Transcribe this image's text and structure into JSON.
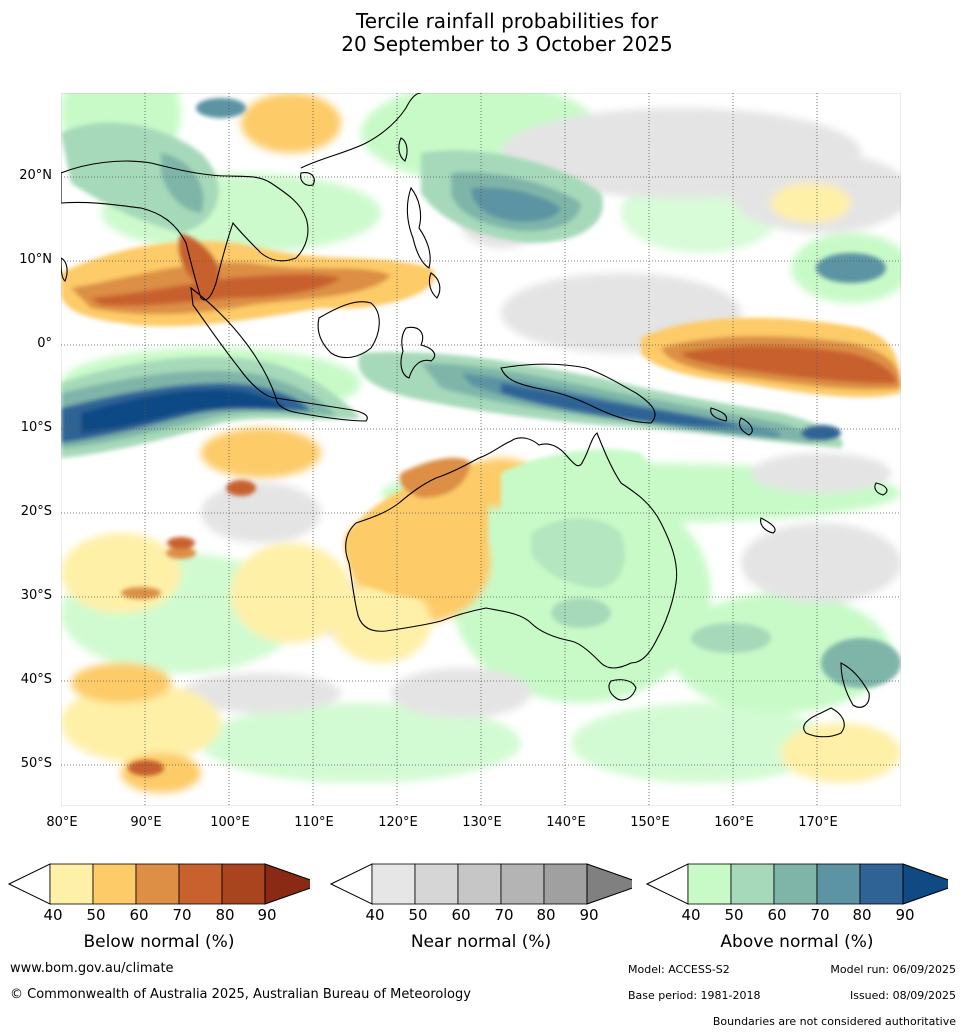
{
  "title": {
    "line1": "Tercile rainfall probabilities for",
    "line2": "20 September to 3 October 2025"
  },
  "axes": {
    "lat_labels": [
      "20°N",
      "10°N",
      "0°",
      "10°S",
      "20°S",
      "30°S",
      "40°S",
      "50°S"
    ],
    "lon_labels": [
      "80°E",
      "90°E",
      "100°E",
      "110°E",
      "120°E",
      "130°E",
      "140°E",
      "150°E",
      "160°E",
      "170°E"
    ]
  },
  "colorbars": [
    {
      "id": "below",
      "title": "Below normal (%)",
      "ticks": [
        "40",
        "50",
        "60",
        "70",
        "80",
        "90"
      ],
      "colors": [
        "#ffffff",
        "#fff0a8",
        "#fdcb67",
        "#dc8f45",
        "#c8612e",
        "#a9441f",
        "#8a2a14"
      ]
    },
    {
      "id": "near",
      "title": "Near normal (%)",
      "ticks": [
        "40",
        "50",
        "60",
        "70",
        "80",
        "90"
      ],
      "colors": [
        "#ffffff",
        "#e6e6e6",
        "#d6d6d6",
        "#c6c6c6",
        "#b4b4b4",
        "#a0a0a0",
        "#808080"
      ]
    },
    {
      "id": "above",
      "title": "Above normal (%)",
      "ticks": [
        "40",
        "50",
        "60",
        "70",
        "80",
        "90"
      ],
      "colors": [
        "#ffffff",
        "#c8fac8",
        "#a6d9b9",
        "#7fb5a9",
        "#5c94a3",
        "#2f6396",
        "#0f4a85"
      ]
    }
  ],
  "footer": {
    "website": "www.bom.gov.au/climate",
    "copyright": "© Commonwealth of Australia 2025, Australian Bureau of Meteorology",
    "model": "Model: ACCESS-S2",
    "model_run": "Model run: 06/09/2025",
    "base_period": "Base period: 1981-2018",
    "issued": "Issued: 08/09/2025",
    "disclaimer": "Boundaries are not considered authoritative"
  }
}
